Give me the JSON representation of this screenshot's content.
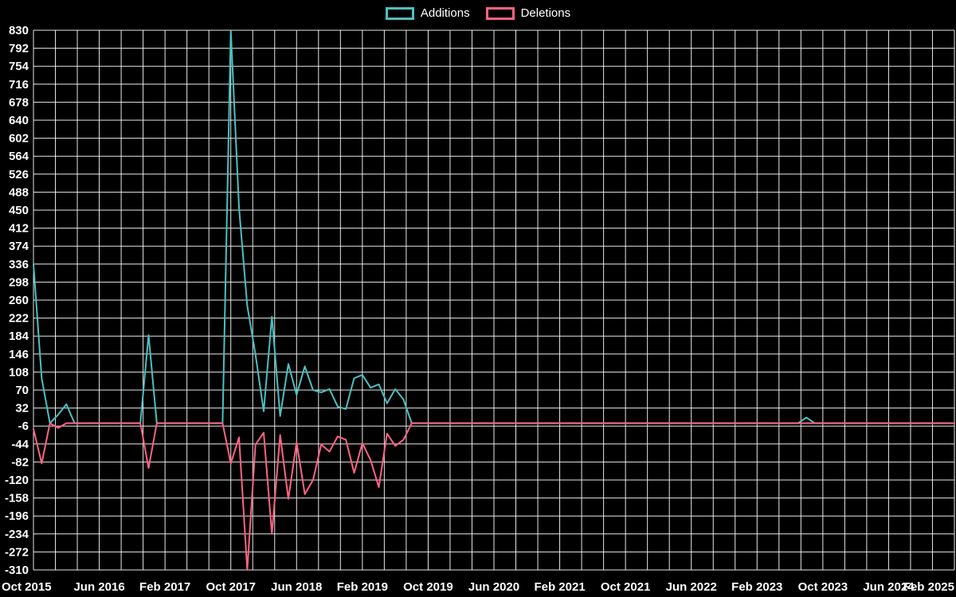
{
  "page": {
    "background": "#000000",
    "text_color": "#ffffff"
  },
  "chart_data": {
    "type": "line",
    "title": "",
    "legend_position": "top",
    "grid": true,
    "background_color": "#000000",
    "grid_color": "rgba(255,255,255,0.9)",
    "tick_color": "#ffffff",
    "ylim": [
      -310,
      830
    ],
    "y_tick_step": 38,
    "y_tick_labels": [
      "830",
      "792",
      "754",
      "716",
      "678",
      "640",
      "602",
      "564",
      "526",
      "488",
      "450",
      "412",
      "374",
      "336",
      "298",
      "260",
      "222",
      "184",
      "146",
      "108",
      "70",
      "32",
      "-6",
      "-44",
      "-82",
      "-120",
      "-158",
      "-196",
      "-234",
      "-272",
      "-310"
    ],
    "x_range": {
      "start": "2015-10",
      "end": "2025-02"
    },
    "x_tick_every_months": 8,
    "minor_gridlines_per_tick": 3,
    "x_tick_labels": [
      "Oct 2015",
      "Jun 2016",
      "Feb 2017",
      "Oct 2017",
      "Jun 2018",
      "Feb 2019",
      "Oct 2019",
      "Jun 2020",
      "Feb 2021",
      "Oct 2021",
      "Jun 2022",
      "Feb 2023",
      "Oct 2023",
      "Jun 2024",
      "Feb 2025"
    ],
    "default_value": 0,
    "series": [
      {
        "name": "Additions",
        "color": "#4bc0c0",
        "points": {
          "2015-10": 336,
          "2015-11": 95,
          "2016-01": 18,
          "2016-02": 40,
          "2016-12": 186,
          "2017-10": 830,
          "2017-11": 455,
          "2017-12": 248,
          "2018-01": 145,
          "2018-02": 25,
          "2018-03": 225,
          "2018-04": 15,
          "2018-05": 125,
          "2018-06": 60,
          "2018-07": 120,
          "2018-08": 70,
          "2018-09": 65,
          "2018-10": 72,
          "2018-11": 35,
          "2018-12": 30,
          "2019-01": 95,
          "2019-02": 102,
          "2019-03": 75,
          "2019-04": 82,
          "2019-05": 42,
          "2019-06": 72,
          "2019-07": 50,
          "2023-08": 12
        }
      },
      {
        "name": "Deletions",
        "color": "#ff6384",
        "points": {
          "2015-10": -12,
          "2015-11": -85,
          "2016-01": -10,
          "2016-12": -95,
          "2017-10": -85,
          "2017-11": -30,
          "2017-12": -310,
          "2018-01": -45,
          "2018-02": -20,
          "2018-03": -234,
          "2018-04": -25,
          "2018-05": -160,
          "2018-06": -40,
          "2018-07": -150,
          "2018-08": -120,
          "2018-09": -45,
          "2018-10": -60,
          "2018-11": -28,
          "2018-12": -35,
          "2019-01": -105,
          "2019-02": -42,
          "2019-03": -78,
          "2019-04": -135,
          "2019-05": -22,
          "2019-06": -48,
          "2019-07": -35
        }
      }
    ]
  }
}
